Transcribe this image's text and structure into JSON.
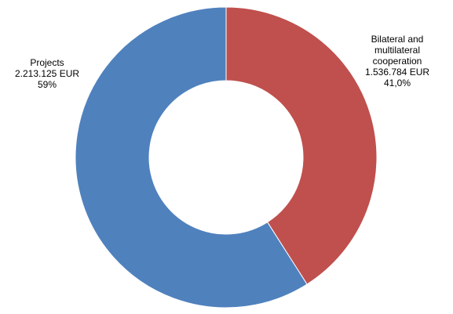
{
  "chart_data": {
    "type": "pie",
    "donut": true,
    "title": "",
    "start": "top",
    "direction": "clockwise",
    "slices": [
      {
        "label_lines": [
          "Bilateral and",
          "multilateral",
          "cooperation"
        ],
        "amount": "1.536.784 EUR",
        "value": 1536784,
        "percent_label": "41,0%",
        "color": "#C0504D"
      },
      {
        "label_lines": [
          "Projects"
        ],
        "amount": "2.213.125 EUR",
        "value": 2213125,
        "percent_label": "59%",
        "color": "#4F81BD"
      }
    ],
    "legend": "none"
  }
}
